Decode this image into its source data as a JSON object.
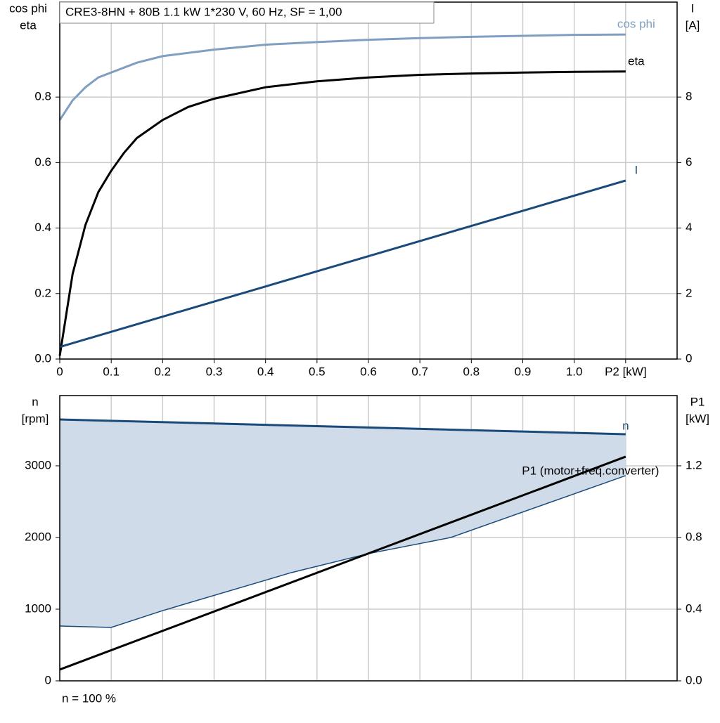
{
  "chart_data": [
    {
      "type": "line",
      "title": "CRE3-8HN + 80B   1.1 kW   1*230 V, 60 Hz, SF = 1,00",
      "ylabel": [
        "cos phi",
        "eta"
      ],
      "y2label": [
        "I",
        "[A]"
      ],
      "xlim": [
        0,
        1.2
      ],
      "xticks": [
        0,
        0.1,
        0.2,
        0.3,
        0.4,
        0.5,
        0.6,
        0.7,
        0.8,
        0.9,
        {
          "value": 1.0,
          "label": "1.0"
        },
        {
          "value": 1.1,
          "label": "P2 [kW]"
        }
      ],
      "ylim": [
        0,
        1.09
      ],
      "yticks": [
        {
          "value": 0,
          "label": "0.0"
        },
        0.2,
        0.4,
        0.6,
        0.8
      ],
      "y2lim": [
        0,
        10.9
      ],
      "y2ticks": [
        0,
        2,
        4,
        6,
        8
      ],
      "grid": true,
      "series": [
        {
          "name": "cos phi",
          "color": "#7f9fc0",
          "x": [
            0,
            0.025,
            0.05,
            0.075,
            0.1,
            0.15,
            0.2,
            0.3,
            0.4,
            0.5,
            0.6,
            0.7,
            0.8,
            0.9,
            1.0,
            1.1
          ],
          "values": [
            0.73,
            0.79,
            0.83,
            0.86,
            0.875,
            0.905,
            0.925,
            0.945,
            0.96,
            0.968,
            0.975,
            0.98,
            0.984,
            0.987,
            0.99,
            0.991
          ]
        },
        {
          "name": "eta",
          "color": "#000000",
          "x": [
            0,
            0.025,
            0.05,
            0.075,
            0.1,
            0.125,
            0.15,
            0.2,
            0.25,
            0.3,
            0.4,
            0.5,
            0.6,
            0.7,
            0.8,
            0.9,
            1.0,
            1.1
          ],
          "values": [
            0.01,
            0.26,
            0.41,
            0.51,
            0.575,
            0.63,
            0.675,
            0.73,
            0.77,
            0.795,
            0.83,
            0.848,
            0.86,
            0.868,
            0.872,
            0.875,
            0.877,
            0.878
          ]
        },
        {
          "name": "I",
          "color": "#1a4a7a",
          "axis": "y2",
          "x": [
            0,
            1.1
          ],
          "values": [
            0.37,
            5.45
          ]
        }
      ]
    },
    {
      "type": "line",
      "ylabel": [
        "n",
        "[rpm]"
      ],
      "y2label": [
        "P1",
        "[kW]"
      ],
      "footnote": "n = 100 %",
      "xlim": [
        0,
        1.2
      ],
      "xgrid": [
        0,
        0.1,
        0.2,
        0.3,
        0.4,
        0.5,
        0.6,
        0.7,
        0.8,
        0.9,
        1.0,
        1.1
      ],
      "ylim": [
        0,
        3980
      ],
      "yticks": [
        0,
        1000,
        2000,
        3000
      ],
      "y2lim": [
        0,
        1.592
      ],
      "y2ticks": [
        {
          "value": 0,
          "label": "0.0"
        },
        0.4,
        0.8,
        1.2
      ],
      "grid": true,
      "band": {
        "color": "#cfdbe8",
        "x": [
          0,
          0.1,
          0.2,
          0.45,
          0.6,
          0.76,
          1.1
        ],
        "values": [
          765,
          745,
          980,
          1510,
          1775,
          2000,
          2863
        ]
      },
      "series": [
        {
          "name": "n",
          "color": "#1a4a7a",
          "x": [
            0,
            1.1
          ],
          "values": [
            3647,
            3441
          ]
        },
        {
          "name": "P1 (motor+freq.converter)",
          "color": "#000000",
          "axis": "y2",
          "x": [
            0,
            1.1
          ],
          "values": [
            0.063,
            1.251
          ]
        }
      ]
    }
  ]
}
